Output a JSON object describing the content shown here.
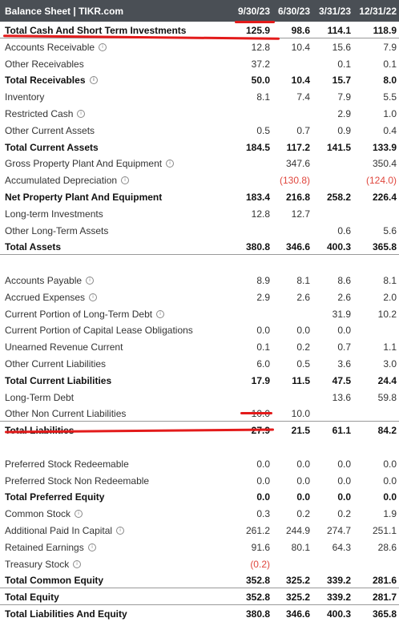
{
  "header": {
    "title": "Balance Sheet | TIKR.com",
    "cols": [
      "9/30/23",
      "6/30/23",
      "3/31/23",
      "12/31/22"
    ]
  },
  "rows": [
    {
      "label": "Total Cash And Short Term Investments",
      "bold": true,
      "info": false,
      "v": [
        "125.9",
        "98.6",
        "114.1",
        "118.9"
      ]
    },
    {
      "label": "Accounts Receivable",
      "bold": false,
      "info": true,
      "v": [
        "12.8",
        "10.4",
        "15.6",
        "7.9"
      ]
    },
    {
      "label": "Other Receivables",
      "bold": false,
      "info": false,
      "v": [
        "37.2",
        "",
        "0.1",
        "0.1"
      ]
    },
    {
      "label": "Total Receivables",
      "bold": true,
      "info": true,
      "v": [
        "50.0",
        "10.4",
        "15.7",
        "8.0"
      ]
    },
    {
      "label": "Inventory",
      "bold": false,
      "info": false,
      "v": [
        "8.1",
        "7.4",
        "7.9",
        "5.5"
      ]
    },
    {
      "label": "Restricted Cash",
      "bold": false,
      "info": true,
      "v": [
        "",
        "",
        "2.9",
        "1.0"
      ]
    },
    {
      "label": "Other Current Assets",
      "bold": false,
      "info": false,
      "v": [
        "0.5",
        "0.7",
        "0.9",
        "0.4"
      ]
    },
    {
      "label": "Total Current Assets",
      "bold": true,
      "info": false,
      "v": [
        "184.5",
        "117.2",
        "141.5",
        "133.9"
      ]
    },
    {
      "label": "Gross Property Plant And Equipment",
      "bold": false,
      "info": true,
      "v": [
        "",
        "347.6",
        "",
        "350.4"
      ]
    },
    {
      "label": "Accumulated Depreciation",
      "bold": false,
      "info": true,
      "v": [
        "",
        "(130.8)",
        "",
        "(124.0)"
      ]
    },
    {
      "label": "Net Property Plant And Equipment",
      "bold": true,
      "info": false,
      "v": [
        "183.4",
        "216.8",
        "258.2",
        "226.4"
      ]
    },
    {
      "label": "Long-term Investments",
      "bold": false,
      "info": false,
      "v": [
        "12.8",
        "12.7",
        "",
        ""
      ]
    },
    {
      "label": "Other Long-Term Assets",
      "bold": false,
      "info": false,
      "v": [
        "",
        "",
        "0.6",
        "5.6"
      ]
    },
    {
      "label": "Total Assets",
      "bold": true,
      "info": false,
      "v": [
        "380.8",
        "346.6",
        "400.3",
        "365.8"
      ]
    },
    {
      "label": "",
      "bold": false,
      "info": false,
      "v": [
        "",
        "",
        "",
        ""
      ]
    },
    {
      "label": "Accounts Payable",
      "bold": false,
      "info": true,
      "v": [
        "8.9",
        "8.1",
        "8.6",
        "8.1"
      ]
    },
    {
      "label": "Accrued Expenses",
      "bold": false,
      "info": true,
      "v": [
        "2.9",
        "2.6",
        "2.6",
        "2.0"
      ]
    },
    {
      "label": "Current Portion of Long-Term Debt",
      "bold": false,
      "info": true,
      "v": [
        "",
        "",
        "31.9",
        "10.2"
      ]
    },
    {
      "label": "Current Portion of Capital Lease Obligations",
      "bold": false,
      "info": false,
      "v": [
        "0.0",
        "0.0",
        "0.0",
        ""
      ]
    },
    {
      "label": "Unearned Revenue Current",
      "bold": false,
      "info": false,
      "v": [
        "0.1",
        "0.2",
        "0.7",
        "1.1"
      ]
    },
    {
      "label": "Other Current Liabilities",
      "bold": false,
      "info": false,
      "v": [
        "6.0",
        "0.5",
        "3.6",
        "3.0"
      ]
    },
    {
      "label": "Total Current Liabilities",
      "bold": true,
      "info": false,
      "v": [
        "17.9",
        "11.5",
        "47.5",
        "24.4"
      ]
    },
    {
      "label": "Long-Term Debt",
      "bold": false,
      "info": false,
      "v": [
        "",
        "",
        "13.6",
        "59.8"
      ]
    },
    {
      "label": "Other Non Current Liabilities",
      "bold": false,
      "info": false,
      "v": [
        "10.0",
        "10.0",
        "",
        ""
      ]
    },
    {
      "label": "Total Liabilities",
      "bold": true,
      "info": false,
      "v": [
        "27.9",
        "21.5",
        "61.1",
        "84.2"
      ]
    },
    {
      "label": "",
      "bold": false,
      "info": false,
      "v": [
        "",
        "",
        "",
        ""
      ]
    },
    {
      "label": "Preferred Stock Redeemable",
      "bold": false,
      "info": false,
      "v": [
        "0.0",
        "0.0",
        "0.0",
        "0.0"
      ]
    },
    {
      "label": "Preferred Stock Non Redeemable",
      "bold": false,
      "info": false,
      "v": [
        "0.0",
        "0.0",
        "0.0",
        "0.0"
      ]
    },
    {
      "label": "Total Preferred Equity",
      "bold": true,
      "info": false,
      "v": [
        "0.0",
        "0.0",
        "0.0",
        "0.0"
      ]
    },
    {
      "label": "Common Stock",
      "bold": false,
      "info": true,
      "v": [
        "0.3",
        "0.2",
        "0.2",
        "1.9"
      ]
    },
    {
      "label": "Additional Paid In Capital",
      "bold": false,
      "info": true,
      "v": [
        "261.2",
        "244.9",
        "274.7",
        "251.1"
      ]
    },
    {
      "label": "Retained Earnings",
      "bold": false,
      "info": true,
      "v": [
        "91.6",
        "80.1",
        "64.3",
        "28.6"
      ]
    },
    {
      "label": "Treasury Stock",
      "bold": false,
      "info": true,
      "v": [
        "(0.2)",
        "",
        "",
        ""
      ]
    },
    {
      "label": "Total Common Equity",
      "bold": true,
      "info": false,
      "v": [
        "352.8",
        "325.2",
        "339.2",
        "281.6"
      ]
    },
    {
      "label": "Total Equity",
      "bold": true,
      "info": false,
      "v": [
        "352.8",
        "325.2",
        "339.2",
        "281.7"
      ]
    },
    {
      "label": "Total Liabilities And Equity",
      "bold": true,
      "info": false,
      "v": [
        "380.8",
        "346.6",
        "400.3",
        "365.8"
      ]
    }
  ],
  "info_glyph": "i",
  "separators_after": [
    0,
    13,
    23,
    33,
    34
  ],
  "annotation_color": "#e31b1b"
}
